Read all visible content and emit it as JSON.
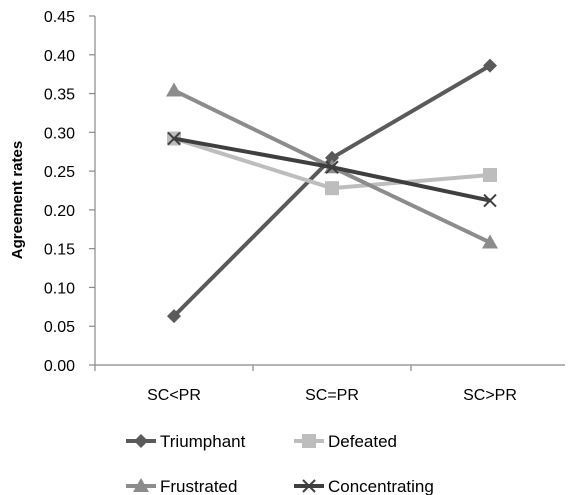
{
  "chart_data": {
    "type": "line",
    "title": "",
    "xlabel": "",
    "ylabel": "Agreement rates",
    "categories": [
      "SC<PR",
      "SC=PR",
      "SC>PR"
    ],
    "ylim": [
      0,
      0.45
    ],
    "yticks": [
      "0.00",
      "0.05",
      "0.10",
      "0.15",
      "0.20",
      "0.25",
      "0.30",
      "0.35",
      "0.40",
      "0.45"
    ],
    "grid": false,
    "legend_position": "bottom",
    "series": [
      {
        "name": "Triumphant",
        "values": [
          0.063,
          0.267,
          0.386
        ],
        "color": "#5a5a5a",
        "marker": "diamond"
      },
      {
        "name": "Defeated",
        "values": [
          0.292,
          0.228,
          0.245
        ],
        "color": "#bdbdbd",
        "marker": "square"
      },
      {
        "name": "Frustrated",
        "values": [
          0.354,
          0.255,
          0.158
        ],
        "color": "#8c8c8c",
        "marker": "triangle"
      },
      {
        "name": "Concentrating",
        "values": [
          0.292,
          0.255,
          0.212
        ],
        "color": "#3f3f3f",
        "marker": "x"
      }
    ]
  }
}
